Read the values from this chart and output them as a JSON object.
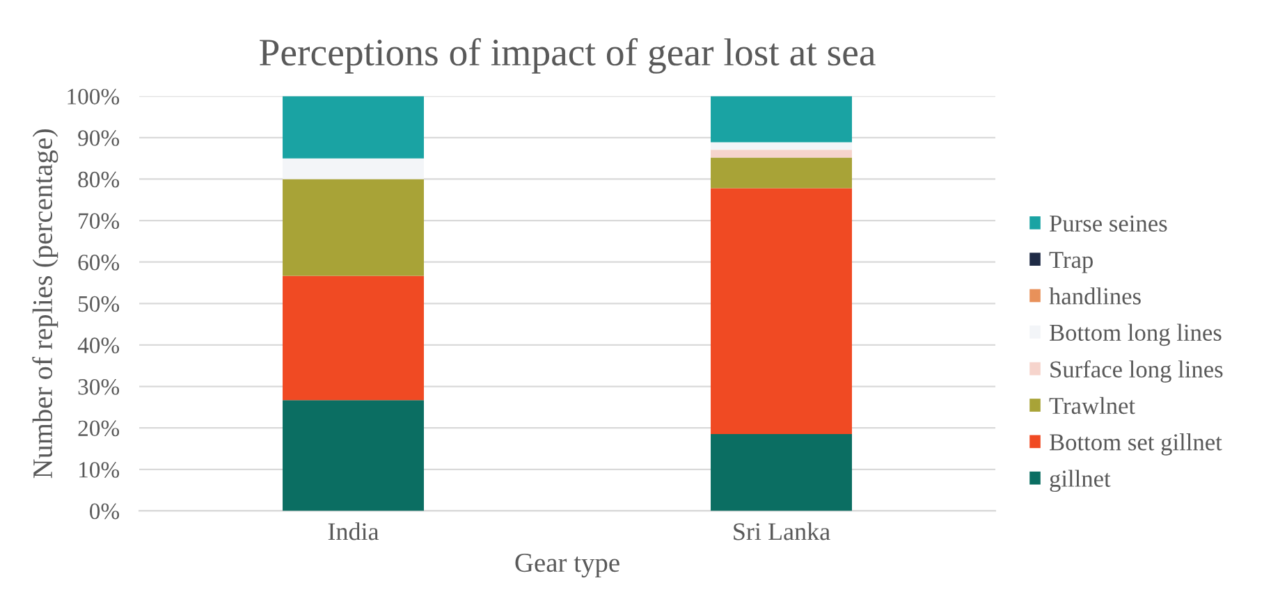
{
  "chart_data": {
    "type": "bar",
    "title": "Perceptions of impact of gear lost at sea",
    "xlabel": "Gear type",
    "ylabel": "Number of replies (percentage)",
    "categories": [
      "India",
      "Sri Lanka"
    ],
    "stacked": true,
    "legend": "right",
    "grid": "y",
    "ylim": [
      0,
      100
    ],
    "yticks": [
      {
        "value": 0,
        "label": "0%"
      },
      {
        "value": 10,
        "label": "10%"
      },
      {
        "value": 20,
        "label": "20%"
      },
      {
        "value": 30,
        "label": "30%"
      },
      {
        "value": 40,
        "label": "40%"
      },
      {
        "value": 50,
        "label": "50%"
      },
      {
        "value": 60,
        "label": "60%"
      },
      {
        "value": 70,
        "label": "70%"
      },
      {
        "value": 80,
        "label": "80%"
      },
      {
        "value": 90,
        "label": "90%"
      },
      {
        "value": 100,
        "label": "100%"
      }
    ],
    "series": [
      {
        "name": "gillnet",
        "color": "#0b6e62",
        "values": [
          26.7,
          18.5
        ]
      },
      {
        "name": "Bottom set gillnet",
        "color": "#f04a23",
        "values": [
          30,
          59.3
        ]
      },
      {
        "name": "Trawlnet",
        "color": "#a8a337",
        "values": [
          23.3,
          7.4
        ]
      },
      {
        "name": "Surface long lines",
        "color": "#f6d4cc",
        "values": [
          null,
          1.9
        ]
      },
      {
        "name": "Bottom long lines",
        "color": "#f3f5f8",
        "values": [
          5,
          1.8
        ]
      },
      {
        "name": "handlines",
        "color": "#e8915a",
        "values": [
          null,
          null
        ]
      },
      {
        "name": "Trap",
        "color": "#1f2b46",
        "values": [
          null,
          null
        ]
      },
      {
        "name": "Purse seines",
        "color": "#1aa3a3",
        "values": [
          15,
          11.1
        ]
      }
    ]
  }
}
